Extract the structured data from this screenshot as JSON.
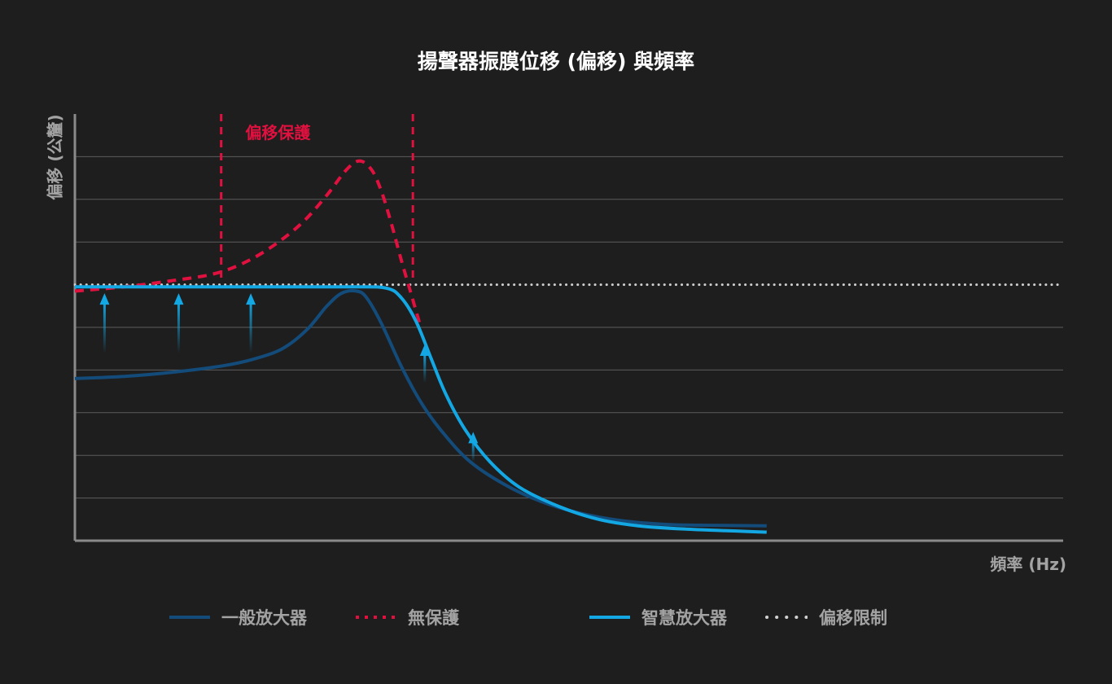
{
  "chart_data": {
    "type": "line",
    "title": "揚聲器振膜位移 (偏移) 與頻率",
    "xlabel": "頻率 (Hz)",
    "ylabel": "偏移 (公釐)",
    "x_range": [
      0,
      100
    ],
    "y_range": [
      0,
      10
    ],
    "grid": true,
    "excursion_limit": 6,
    "protection_zone": {
      "label": "偏移保護",
      "x_start": 14.8,
      "x_end": 34.2
    },
    "series": [
      {
        "name": "一般放大器",
        "color": "#134b7a",
        "style": "solid",
        "points": [
          [
            0,
            3.8
          ],
          [
            5,
            3.85
          ],
          [
            10,
            3.95
          ],
          [
            15,
            4.1
          ],
          [
            18,
            4.25
          ],
          [
            21,
            4.5
          ],
          [
            23.5,
            4.95
          ],
          [
            25.5,
            5.5
          ],
          [
            27,
            5.8
          ],
          [
            28.5,
            5.85
          ],
          [
            29.5,
            5.7
          ],
          [
            31,
            5.1
          ],
          [
            33,
            4.1
          ],
          [
            35,
            3.25
          ],
          [
            37,
            2.6
          ],
          [
            40,
            1.85
          ],
          [
            44,
            1.25
          ],
          [
            48,
            0.85
          ],
          [
            52,
            0.6
          ],
          [
            56,
            0.45
          ],
          [
            60,
            0.38
          ],
          [
            64,
            0.36
          ],
          [
            70,
            0.35
          ]
        ]
      },
      {
        "name": "無保護",
        "color": "#e0103f",
        "style": "dashed",
        "points": [
          [
            0,
            5.85
          ],
          [
            5,
            5.95
          ],
          [
            10,
            6.1
          ],
          [
            14,
            6.25
          ],
          [
            17,
            6.5
          ],
          [
            20,
            6.9
          ],
          [
            23,
            7.45
          ],
          [
            25.5,
            8.1
          ],
          [
            27.5,
            8.7
          ],
          [
            28.8,
            8.9
          ],
          [
            30,
            8.7
          ],
          [
            31,
            8.2
          ],
          [
            32,
            7.45
          ],
          [
            33,
            6.6
          ],
          [
            34,
            5.8
          ],
          [
            35,
            5.0
          ]
        ]
      },
      {
        "name": "智慧放大器",
        "color": "#13a7e4",
        "style": "solid",
        "points": [
          [
            0,
            5.95
          ],
          [
            10,
            5.95
          ],
          [
            20,
            5.95
          ],
          [
            28,
            5.95
          ],
          [
            31.5,
            5.92
          ],
          [
            33,
            5.7
          ],
          [
            34.5,
            5.15
          ],
          [
            36,
            4.3
          ],
          [
            37.5,
            3.45
          ],
          [
            39.5,
            2.6
          ],
          [
            42,
            1.85
          ],
          [
            45,
            1.25
          ],
          [
            49,
            0.8
          ],
          [
            53,
            0.5
          ],
          [
            57,
            0.35
          ],
          [
            62,
            0.27
          ],
          [
            70,
            0.2
          ]
        ]
      }
    ],
    "boost_arrows": [
      {
        "x": 3,
        "y_from": 4.4,
        "y_to": 5.8
      },
      {
        "x": 10.5,
        "y_from": 4.4,
        "y_to": 5.8
      },
      {
        "x": 17.8,
        "y_from": 4.4,
        "y_to": 5.8
      },
      {
        "x": 35.4,
        "y_from": 3.7,
        "y_to": 4.6
      },
      {
        "x": 40.3,
        "y_from": 1.85,
        "y_to": 2.55
      }
    ]
  },
  "legend": [
    {
      "label": "一般放大器",
      "color": "#134b7a",
      "style": "solid"
    },
    {
      "label": "無保護",
      "color": "#e0103f",
      "style": "dashed"
    },
    {
      "label": "智慧放大器",
      "color": "#13a7e4",
      "style": "solid"
    },
    {
      "label": "偏移限制",
      "color": "#d0d0d0",
      "style": "dotted"
    }
  ],
  "colors": {
    "background": "#1e1e1e",
    "grid": "#5c5c5c",
    "axis": "#8a8a8a",
    "protection": "#e0103f",
    "limit": "#d0d0d0"
  }
}
